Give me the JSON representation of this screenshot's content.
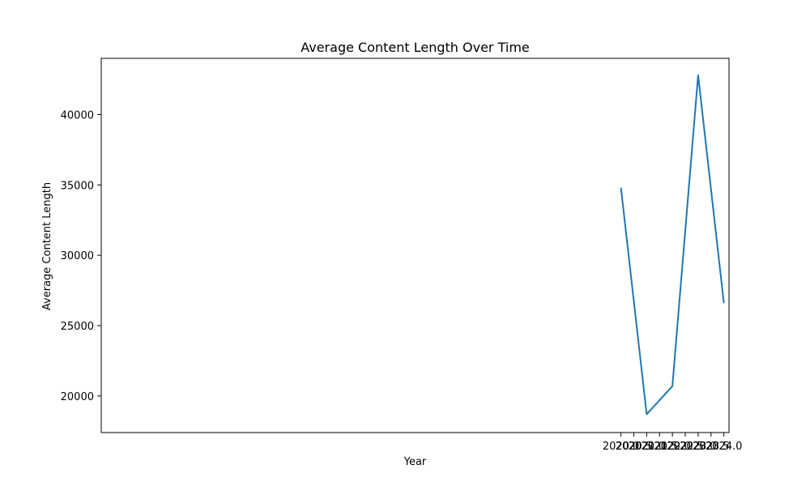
{
  "chart_data": {
    "type": "line",
    "title": "Average Content Length Over Time",
    "xlabel": "Year",
    "ylabel": "Average Content Length",
    "xlim": [
      1999.8,
      2024.2
    ],
    "ylim": [
      17400,
      44000
    ],
    "x_ticks": [
      2020.0,
      2020.5,
      2021.0,
      2021.5,
      2022.0,
      2022.5,
      2023.0,
      2023.5,
      2024.0
    ],
    "x_tick_labels": [
      "2020.0",
      "2020.5",
      "2021.0",
      "2021.5",
      "2022.0",
      "2022.5",
      "2023.0",
      "2023.5",
      "2024.0"
    ],
    "y_ticks": [
      20000,
      25000,
      30000,
      35000,
      40000
    ],
    "y_tick_labels": [
      "20000",
      "25000",
      "30000",
      "35000",
      "40000"
    ],
    "grid": false,
    "series": [
      {
        "color": "#1f77b4",
        "x": [
          2020,
          2021,
          2022,
          2023,
          2024
        ],
        "y": [
          34800,
          18700,
          20700,
          42800,
          26600
        ]
      }
    ]
  }
}
